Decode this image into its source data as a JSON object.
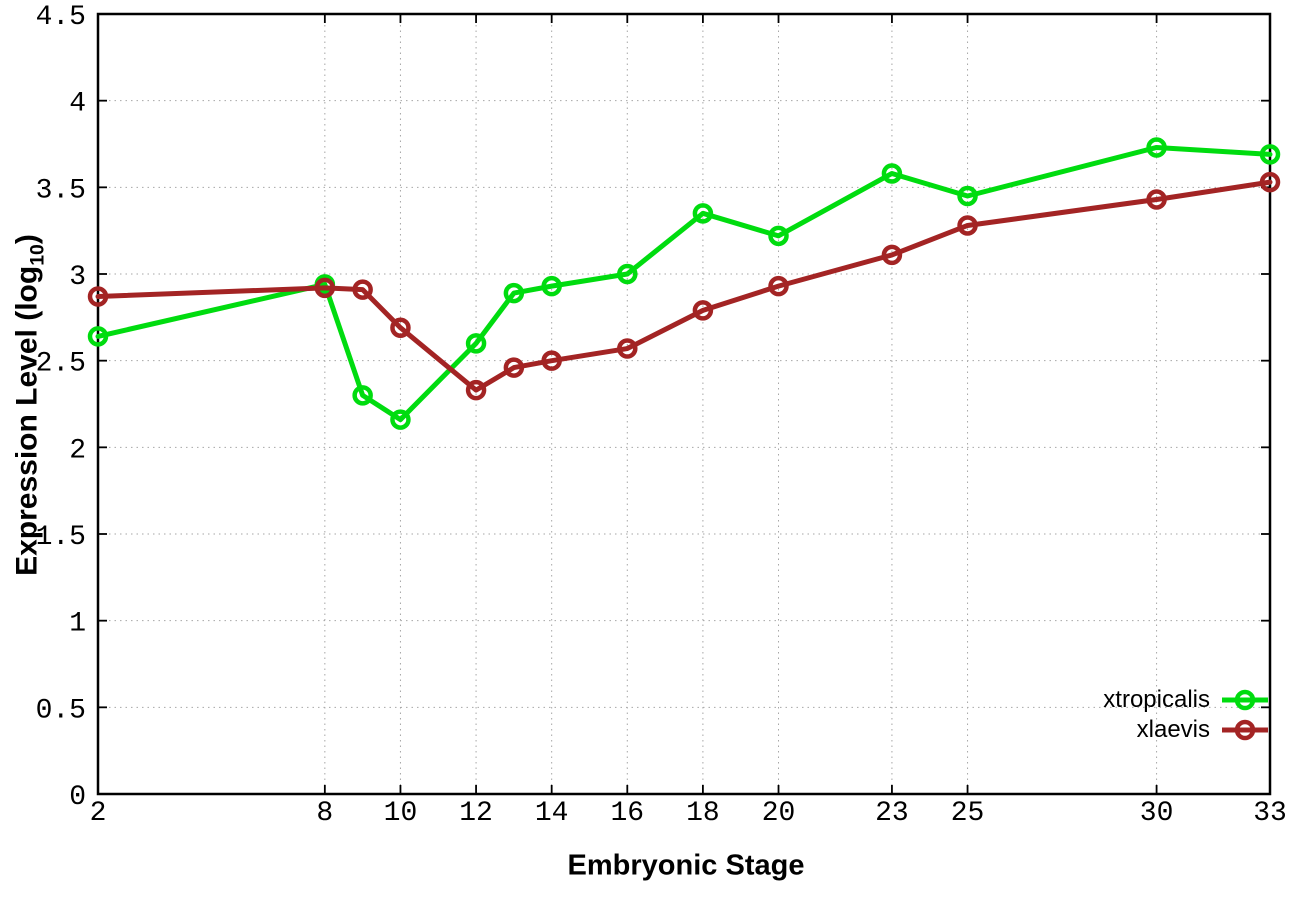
{
  "figure": {
    "background": "#ffffff",
    "border_color": "#000000",
    "grid_color": "#a6a6a6",
    "tick_label_color": "#000000"
  },
  "chart_data": {
    "type": "line",
    "title": "",
    "xlabel": "Embryonic Stage",
    "ylabel": {
      "prefix": "Expression Level (log",
      "sub": "10",
      "suffix": ")"
    },
    "x": [
      2,
      8,
      9,
      10,
      12,
      13,
      14,
      16,
      18,
      20,
      23,
      25,
      30,
      33
    ],
    "series": [
      {
        "name": "xtropicalis",
        "color": "#00dc0f",
        "marker": "open-circle",
        "values": [
          2.64,
          2.94,
          2.3,
          2.16,
          2.6,
          2.89,
          2.93,
          3.0,
          3.35,
          3.22,
          3.58,
          3.45,
          3.73,
          3.69
        ]
      },
      {
        "name": "xlaevis",
        "color": "#a32424",
        "marker": "open-circle",
        "values": [
          2.87,
          2.92,
          2.91,
          2.69,
          2.33,
          2.46,
          2.5,
          2.57,
          2.79,
          2.93,
          3.11,
          3.28,
          3.43,
          3.53
        ]
      }
    ],
    "x_ticks": [
      "2",
      "8",
      "10",
      "12",
      "14",
      "16",
      "18",
      "20",
      "23",
      "25",
      "30",
      "33"
    ],
    "x_tick_values": [
      2,
      8,
      10,
      12,
      14,
      16,
      18,
      20,
      23,
      25,
      30,
      33
    ],
    "y_ticks": [
      "0",
      "0.5",
      "1",
      "1.5",
      "2",
      "2.5",
      "3",
      "3.5",
      "4",
      "4.5"
    ],
    "y_tick_values": [
      0,
      0.5,
      1,
      1.5,
      2,
      2.5,
      3,
      3.5,
      4,
      4.5
    ],
    "xlim": [
      2,
      33
    ],
    "ylim": [
      0,
      4.5
    ],
    "grid": true,
    "legend_position": "bottom-right"
  }
}
